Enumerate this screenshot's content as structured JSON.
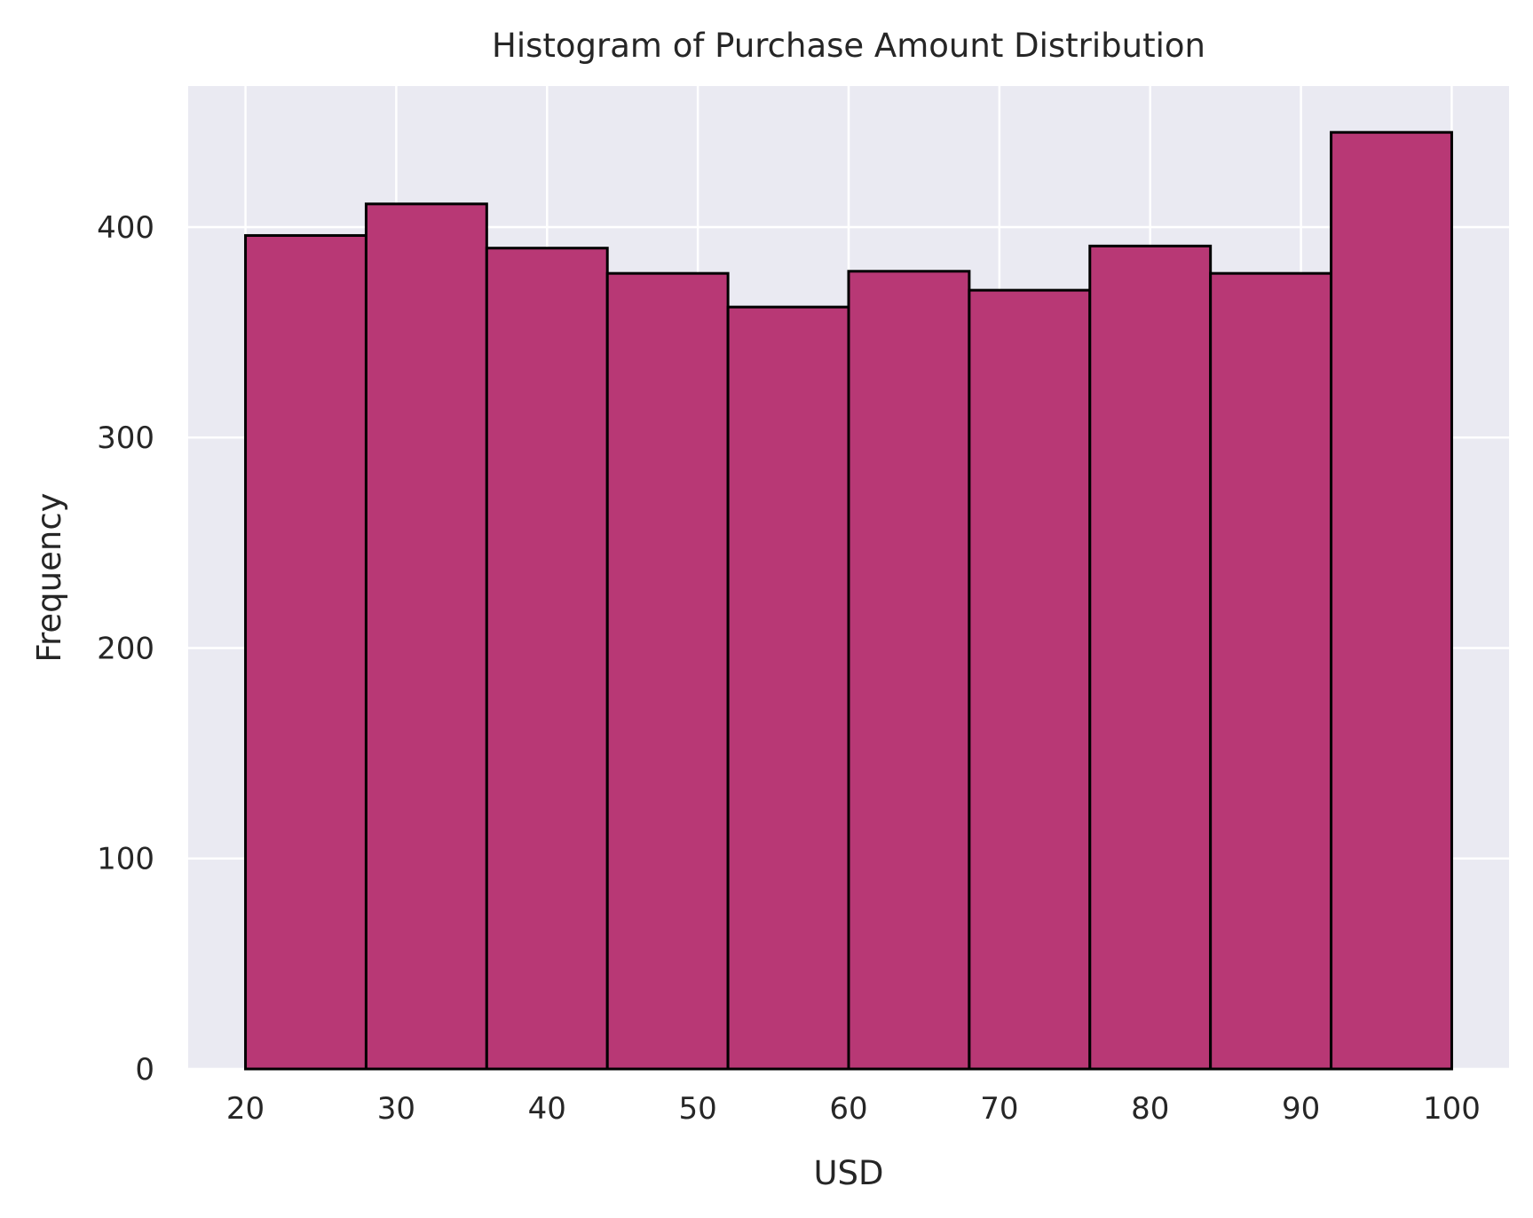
{
  "chart_data": {
    "type": "bar",
    "subtype": "histogram",
    "title": "Histogram of Purchase Amount Distribution",
    "xlabel": "USD",
    "ylabel": "Frequency",
    "bin_edges": [
      20,
      28,
      36,
      44,
      52,
      60,
      68,
      76,
      84,
      92,
      100
    ],
    "values": [
      396,
      411,
      390,
      378,
      362,
      379,
      370,
      391,
      378,
      445
    ],
    "xlim": [
      16.2,
      103.8
    ],
    "ylim": [
      0,
      467
    ],
    "xticks": [
      20,
      30,
      40,
      50,
      60,
      70,
      80,
      90,
      100
    ],
    "yticks": [
      0,
      100,
      200,
      300,
      400
    ],
    "grid": true,
    "colors": {
      "bar_fill": "#b83875",
      "bar_edge": "#000000",
      "plot_background": "#eaeaf2",
      "grid": "#ffffff",
      "text": "#262626"
    }
  }
}
